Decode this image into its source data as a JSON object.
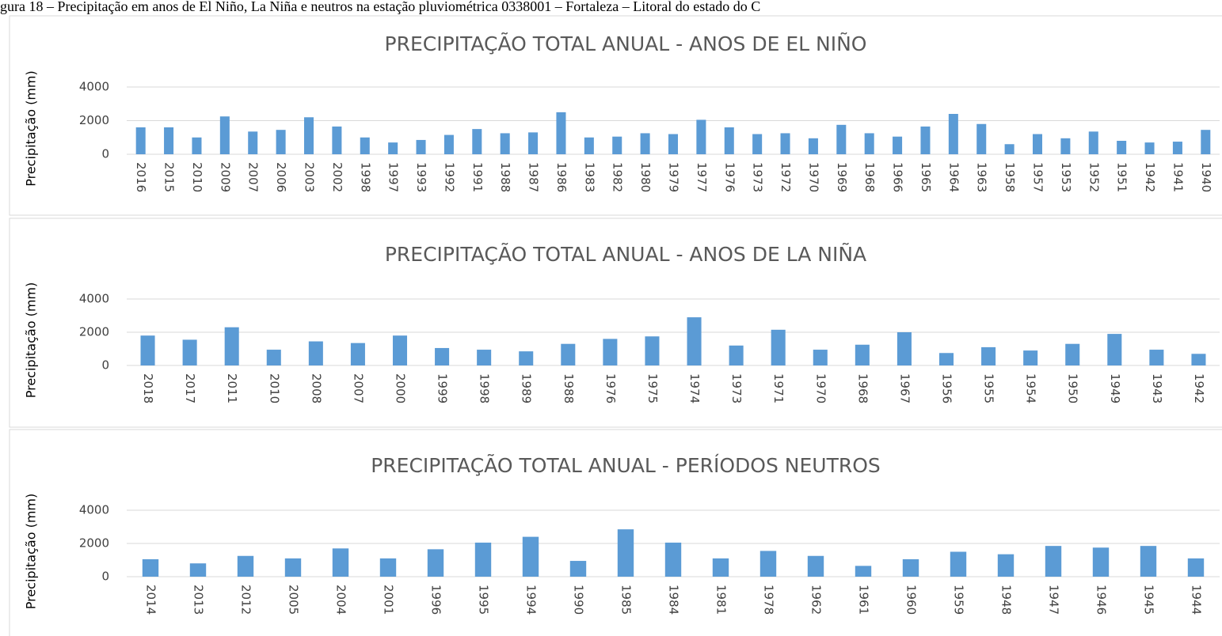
{
  "caption": "gura 18 – Precipitação em anos de El Niño, La Niña e neutros na estação pluviométrica 0338001 – Fortaleza – Litoral do estado do C",
  "chart_data": [
    {
      "type": "bar",
      "title": "PRECIPITAÇÃO TOTAL ANUAL - ANOS DE EL NIÑO",
      "y_label": "Precipitação (mm)",
      "categories": [
        "2016",
        "2015",
        "2010",
        "2009",
        "2007",
        "2006",
        "2003",
        "2002",
        "1998",
        "1997",
        "1993",
        "1992",
        "1991",
        "1988",
        "1987",
        "1986",
        "1983",
        "1982",
        "1980",
        "1979",
        "1977",
        "1976",
        "1973",
        "1972",
        "1970",
        "1969",
        "1968",
        "1966",
        "1965",
        "1964",
        "1963",
        "1958",
        "1957",
        "1953",
        "1952",
        "1951",
        "1942",
        "1941",
        "1940"
      ],
      "values": [
        1600,
        1600,
        1000,
        2250,
        1350,
        1450,
        2200,
        1650,
        1000,
        700,
        850,
        1150,
        1500,
        1250,
        1300,
        2500,
        1000,
        1050,
        1250,
        1200,
        2050,
        1600,
        1200,
        1250,
        950,
        1750,
        1250,
        1050,
        1650,
        2400,
        1800,
        600,
        1200,
        950,
        1350,
        800,
        700,
        750,
        1450
      ],
      "color": "#5b9bd5",
      "ylim": [
        0,
        4000
      ],
      "yticks": [
        0,
        2000,
        4000
      ],
      "grid": true
    },
    {
      "type": "bar",
      "title": "PRECIPITAÇÃO TOTAL ANUAL - ANOS DE LA NIÑA",
      "y_label": "Precipitação (mm)",
      "categories": [
        "2018",
        "2017",
        "2011",
        "2010",
        "2008",
        "2007",
        "2000",
        "1999",
        "1998",
        "1989",
        "1988",
        "1976",
        "1975",
        "1974",
        "1973",
        "1971",
        "1970",
        "1968",
        "1967",
        "1956",
        "1955",
        "1954",
        "1950",
        "1949",
        "1943",
        "1942"
      ],
      "values": [
        1800,
        1550,
        2300,
        950,
        1450,
        1350,
        1800,
        1050,
        950,
        850,
        1300,
        1600,
        1750,
        2900,
        1200,
        2150,
        950,
        1250,
        2000,
        750,
        1100,
        900,
        1300,
        1900,
        950,
        700
      ],
      "color": "#5b9bd5",
      "ylim": [
        0,
        4000
      ],
      "yticks": [
        0,
        2000,
        4000
      ],
      "grid": true
    },
    {
      "type": "bar",
      "title": "PRECIPITAÇÃO TOTAL ANUAL - PERÍODOS NEUTROS",
      "y_label": "Precipitação (mm)",
      "categories": [
        "2014",
        "2013",
        "2012",
        "2005",
        "2004",
        "2001",
        "1996",
        "1995",
        "1994",
        "1990",
        "1985",
        "1984",
        "1981",
        "1978",
        "1962",
        "1961",
        "1960",
        "1959",
        "1948",
        "1947",
        "1946",
        "1945",
        "1944"
      ],
      "values": [
        1050,
        800,
        1250,
        1100,
        1700,
        1100,
        1650,
        2050,
        2400,
        950,
        2850,
        2050,
        1100,
        1550,
        1250,
        650,
        1050,
        1500,
        1350,
        1850,
        1750,
        1850,
        1100
      ],
      "color": "#5b9bd5",
      "ylim": [
        0,
        4000
      ],
      "yticks": [
        0,
        2000,
        4000
      ],
      "grid": true
    }
  ]
}
